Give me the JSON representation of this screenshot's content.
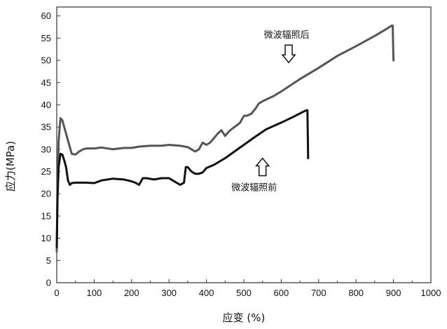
{
  "chart_data": {
    "type": "line",
    "title": "",
    "xlabel": "应变 (%)",
    "ylabel": "应力(MPa)",
    "xlim": [
      0,
      1000
    ],
    "ylim": [
      0,
      62
    ],
    "x_ticks": [
      "0",
      "100",
      "200",
      "300",
      "400",
      "500",
      "600",
      "700",
      "800",
      "900",
      "1000"
    ],
    "y_ticks": [
      "0",
      "5",
      "10",
      "15",
      "20",
      "25",
      "30",
      "35",
      "40",
      "45",
      "50",
      "55",
      "60"
    ],
    "grid": false,
    "legend": "none",
    "series": [
      {
        "name": "微波辐照后",
        "color": "#555555",
        "points": [
          [
            0,
            7
          ],
          [
            2,
            22
          ],
          [
            5,
            32
          ],
          [
            10,
            37
          ],
          [
            15,
            36.5
          ],
          [
            20,
            35
          ],
          [
            30,
            32
          ],
          [
            40,
            29
          ],
          [
            50,
            28.8
          ],
          [
            60,
            29.5
          ],
          [
            70,
            30
          ],
          [
            80,
            30.2
          ],
          [
            100,
            30.2
          ],
          [
            120,
            30.4
          ],
          [
            150,
            30
          ],
          [
            180,
            30.3
          ],
          [
            200,
            30.3
          ],
          [
            220,
            30.6
          ],
          [
            250,
            30.8
          ],
          [
            280,
            30.8
          ],
          [
            300,
            31
          ],
          [
            330,
            30.8
          ],
          [
            350,
            30.5
          ],
          [
            360,
            30
          ],
          [
            370,
            29.5
          ],
          [
            380,
            30
          ],
          [
            390,
            31.5
          ],
          [
            400,
            31
          ],
          [
            410,
            31.5
          ],
          [
            420,
            32.5
          ],
          [
            430,
            33.5
          ],
          [
            440,
            34.3
          ],
          [
            450,
            33
          ],
          [
            460,
            34
          ],
          [
            470,
            34.7
          ],
          [
            480,
            35.3
          ],
          [
            490,
            36
          ],
          [
            500,
            37.5
          ],
          [
            510,
            37.6
          ],
          [
            520,
            38
          ],
          [
            530,
            39
          ],
          [
            540,
            40.3
          ],
          [
            550,
            40.8
          ],
          [
            560,
            41.2
          ],
          [
            580,
            42
          ],
          [
            600,
            43
          ],
          [
            650,
            45.8
          ],
          [
            700,
            48.3
          ],
          [
            750,
            51
          ],
          [
            800,
            53.2
          ],
          [
            850,
            55.5
          ],
          [
            880,
            57
          ],
          [
            895,
            57.8
          ],
          [
            898,
            57.8
          ],
          [
            900,
            50
          ]
        ]
      },
      {
        "name": "微波辐照前",
        "color": "#111111",
        "points": [
          [
            0,
            8
          ],
          [
            2,
            19
          ],
          [
            5,
            26
          ],
          [
            10,
            29
          ],
          [
            15,
            28.8
          ],
          [
            20,
            27.5
          ],
          [
            25,
            26
          ],
          [
            30,
            23
          ],
          [
            35,
            22
          ],
          [
            40,
            22.4
          ],
          [
            50,
            22.5
          ],
          [
            80,
            22.5
          ],
          [
            100,
            22.4
          ],
          [
            120,
            23
          ],
          [
            150,
            23.4
          ],
          [
            180,
            23.2
          ],
          [
            200,
            22.8
          ],
          [
            210,
            22.5
          ],
          [
            220,
            22
          ],
          [
            230,
            23.5
          ],
          [
            240,
            23.5
          ],
          [
            260,
            23.2
          ],
          [
            280,
            23.5
          ],
          [
            300,
            23.5
          ],
          [
            320,
            22.5
          ],
          [
            330,
            22
          ],
          [
            340,
            22.5
          ],
          [
            345,
            26
          ],
          [
            350,
            26
          ],
          [
            360,
            25
          ],
          [
            370,
            24.5
          ],
          [
            380,
            24.5
          ],
          [
            390,
            24.8
          ],
          [
            400,
            25.8
          ],
          [
            420,
            26.5
          ],
          [
            450,
            28
          ],
          [
            480,
            29.8
          ],
          [
            500,
            31
          ],
          [
            530,
            32.8
          ],
          [
            560,
            34.5
          ],
          [
            600,
            36
          ],
          [
            630,
            37.2
          ],
          [
            660,
            38.5
          ],
          [
            668,
            38.8
          ],
          [
            670,
            38.8
          ],
          [
            672,
            28
          ]
        ]
      }
    ],
    "annotations": [
      {
        "text": "微波辐照后",
        "series": "微波辐照后",
        "arrow": "down",
        "x": 620,
        "y": 49.5
      },
      {
        "text": "微波辐照前",
        "series": "微波辐照前",
        "arrow": "up",
        "x": 550,
        "y": 28
      }
    ]
  }
}
